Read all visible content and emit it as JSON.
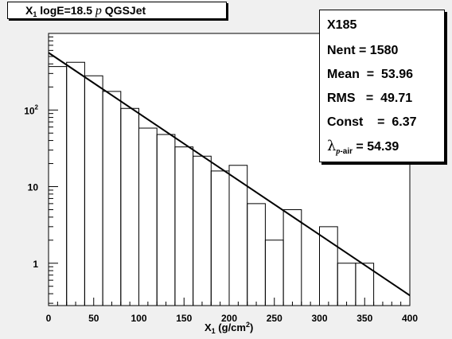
{
  "title": {
    "main": "X",
    "sub": "1",
    "rest": " logE=18.5 ",
    "particle": "p",
    "model": "  QGSJet"
  },
  "stats": {
    "name": "X185",
    "nent": "Nent = 1580",
    "mean": "Mean  =  53.96",
    "rms": "RMS   =  49.71",
    "const": "Const    =  6.37",
    "lambda_symbol": "λ",
    "lambda_sub_p": "p",
    "lambda_sub_rest": "-air",
    "lambda_value": " = 54.39"
  },
  "chart_data": {
    "type": "histogram",
    "xlabel_main": "X",
    "xlabel_sub": "1",
    "xlabel_rest": " (g/cm",
    "xlabel_sup": "2",
    "xlabel_end": ")",
    "xlim": [
      0,
      400
    ],
    "ylim": [
      0.28,
      1000
    ],
    "yscale": "log",
    "xticks": [
      0,
      50,
      100,
      150,
      200,
      250,
      300,
      350,
      400
    ],
    "yticks": [
      {
        "value": 1,
        "label": "1"
      },
      {
        "value": 10,
        "label": "10"
      },
      {
        "value": 100,
        "label": "10",
        "sup": "2"
      }
    ],
    "bin_width": 20,
    "bins": [
      {
        "x0": 0,
        "value": 370
      },
      {
        "x0": 20,
        "value": 420
      },
      {
        "x0": 40,
        "value": 280
      },
      {
        "x0": 60,
        "value": 175
      },
      {
        "x0": 80,
        "value": 105
      },
      {
        "x0": 100,
        "value": 58
      },
      {
        "x0": 120,
        "value": 48
      },
      {
        "x0": 140,
        "value": 33
      },
      {
        "x0": 160,
        "value": 25
      },
      {
        "x0": 180,
        "value": 16
      },
      {
        "x0": 200,
        "value": 19
      },
      {
        "x0": 220,
        "value": 6
      },
      {
        "x0": 240,
        "value": 2
      },
      {
        "x0": 260,
        "value": 5
      },
      {
        "x0": 280,
        "value": 0
      },
      {
        "x0": 300,
        "value": 3
      },
      {
        "x0": 320,
        "value": 1
      },
      {
        "x0": 340,
        "value": 1
      },
      {
        "x0": 360,
        "value": 0
      },
      {
        "x0": 380,
        "value": 0
      }
    ],
    "fit": {
      "type": "exponential",
      "x_start": 0,
      "x_end": 400,
      "y_start": 560,
      "y_end": 0.38
    },
    "grid": false
  }
}
